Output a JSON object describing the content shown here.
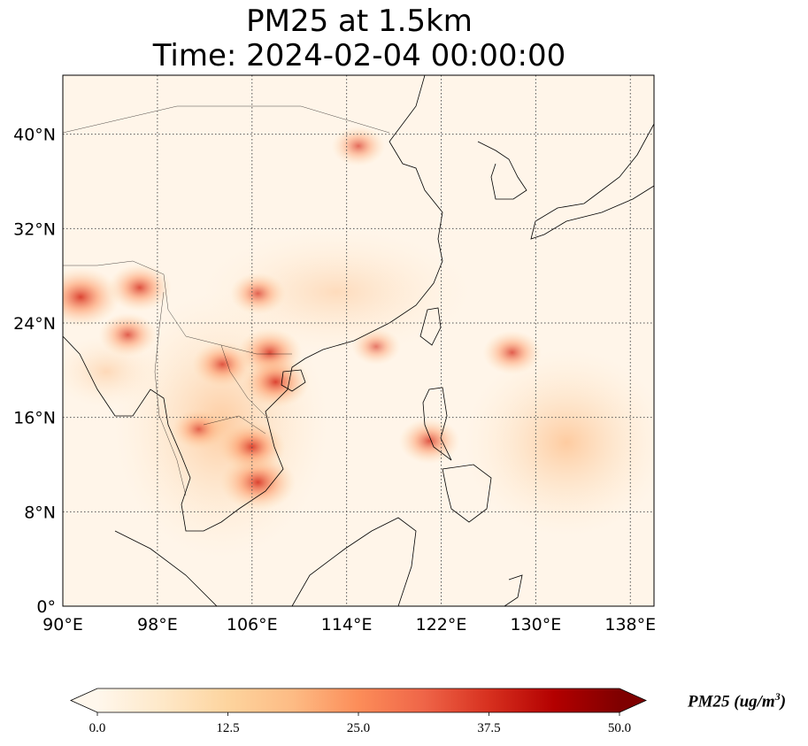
{
  "title": {
    "line1": "PM25 at 1.5km",
    "line2": "Time: 2024-02-04 00:00:00"
  },
  "map": {
    "projection": "PlateCarree",
    "lon_range": [
      90,
      140
    ],
    "lat_range": [
      0,
      45
    ],
    "lon_ticks": [
      {
        "value": 90,
        "label": "90°E"
      },
      {
        "value": 98,
        "label": "98°E"
      },
      {
        "value": 106,
        "label": "106°E"
      },
      {
        "value": 114,
        "label": "114°E"
      },
      {
        "value": 122,
        "label": "122°E"
      },
      {
        "value": 130,
        "label": "130°E"
      },
      {
        "value": 138,
        "label": "138°E"
      }
    ],
    "lat_ticks": [
      {
        "value": 0,
        "label": "0°"
      },
      {
        "value": 8,
        "label": "8°N"
      },
      {
        "value": 16,
        "label": "16°N"
      },
      {
        "value": 24,
        "label": "24°N"
      },
      {
        "value": 32,
        "label": "32°N"
      },
      {
        "value": 40,
        "label": "40°N"
      }
    ],
    "gridlines": "dotted",
    "background_color": "#fff5e9",
    "hotspots": [
      {
        "region": "north-myanmar-border",
        "lon": 91.5,
        "lat": 26.2,
        "level": 45
      },
      {
        "region": "yunnan-myanmar",
        "lon": 96.5,
        "lat": 27.0,
        "level": 32
      },
      {
        "region": "myanmar",
        "lon": 95.5,
        "lat": 23.0,
        "level": 28
      },
      {
        "region": "north-vietnam-laos",
        "lon": 103.5,
        "lat": 20.5,
        "level": 30
      },
      {
        "region": "guangxi",
        "lon": 107.5,
        "lat": 21.5,
        "level": 33
      },
      {
        "region": "gulf-of-tonkin",
        "lon": 108.0,
        "lat": 19.0,
        "level": 36
      },
      {
        "region": "sichuan-guizhou",
        "lon": 106.5,
        "lat": 26.5,
        "level": 26
      },
      {
        "region": "south-vietnam",
        "lon": 106.5,
        "lat": 10.5,
        "level": 42
      },
      {
        "region": "cambodia",
        "lon": 106.0,
        "lat": 13.5,
        "level": 35
      },
      {
        "region": "central-thailand",
        "lon": 101.5,
        "lat": 15.0,
        "level": 24
      },
      {
        "region": "north-china-plain",
        "lon": 115.0,
        "lat": 39.0,
        "level": 24
      },
      {
        "region": "taiwan-strait",
        "lon": 116.5,
        "lat": 22.0,
        "level": 20
      },
      {
        "region": "luzon",
        "lon": 121.0,
        "lat": 14.0,
        "level": 30
      },
      {
        "region": "philippine-sea-arc",
        "lon": 128.0,
        "lat": 21.5,
        "level": 28
      }
    ],
    "land_features": [
      "China",
      "Korea",
      "Japan",
      "Taiwan",
      "Philippines",
      "Indochina",
      "Malay Peninsula",
      "Borneo",
      "Sumatra"
    ]
  },
  "colorbar": {
    "colormap": "OrRd",
    "vmin": 0.0,
    "vmax": 50.0,
    "extend": "both",
    "ticks": [
      "0.0",
      "12.5",
      "25.0",
      "37.5",
      "50.0"
    ],
    "label_main": "PM25 (ug/m",
    "label_sup": "3",
    "label_end": ")",
    "colors": [
      "#fff7ec",
      "#fee8c8",
      "#fdd49e",
      "#fdbb84",
      "#fc8d59",
      "#ef6548",
      "#d7301f",
      "#b30000",
      "#7f0000"
    ]
  }
}
